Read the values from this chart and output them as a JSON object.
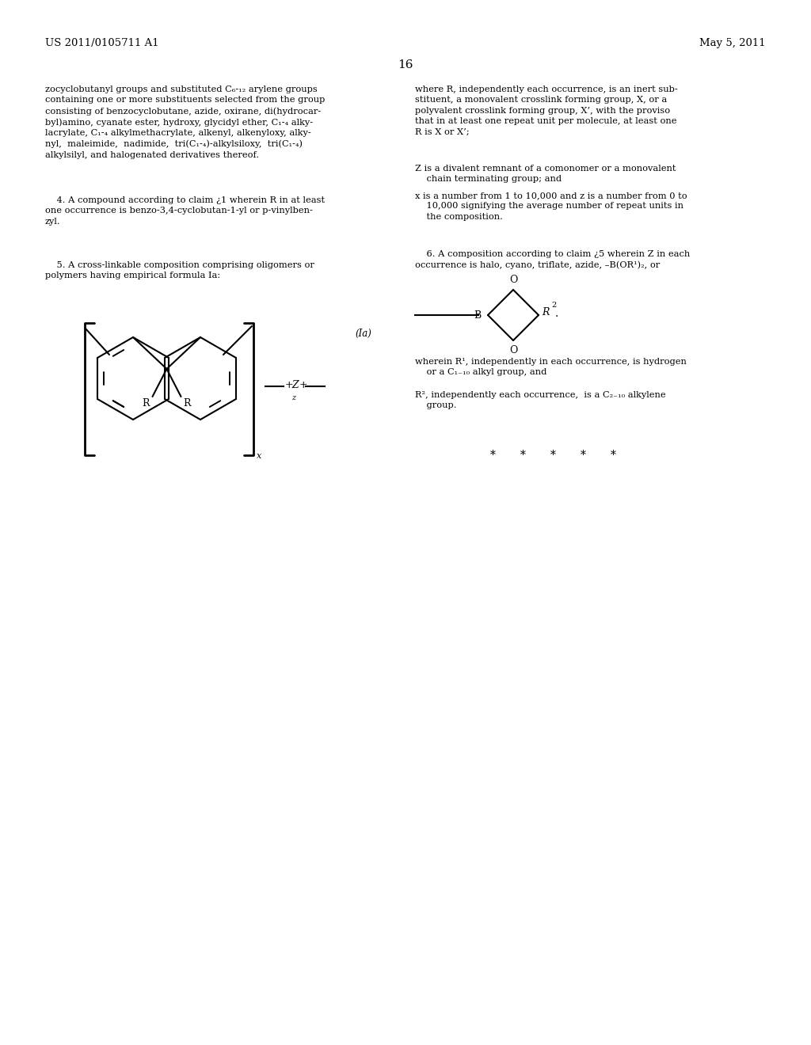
{
  "page_num": "16",
  "header_left": "US 2011/0105711 A1",
  "header_right": "May 5, 2011",
  "background": "#ffffff",
  "text_color": "#000000",
  "figsize": [
    10.24,
    13.2
  ],
  "dpi": 100
}
